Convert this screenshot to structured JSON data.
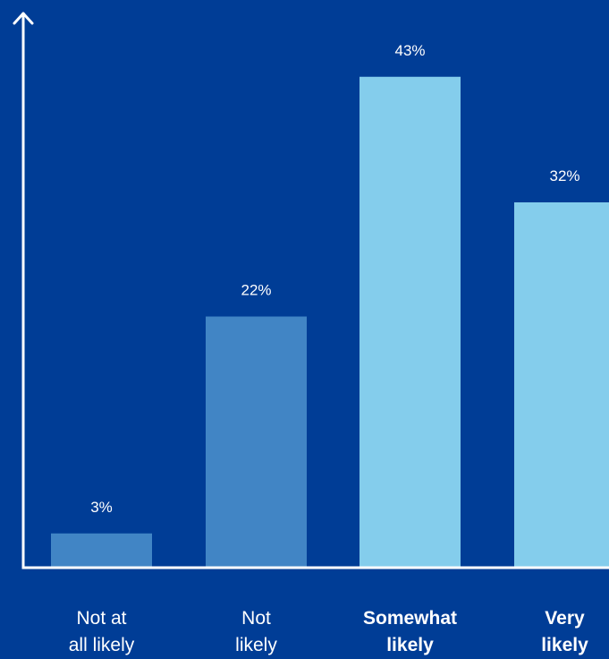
{
  "chart_data": {
    "type": "bar",
    "categories": [
      [
        "Not at",
        "all likely"
      ],
      [
        "Not",
        "likely"
      ],
      [
        "Somewhat",
        "likely"
      ],
      [
        "Very",
        "likely"
      ]
    ],
    "values": [
      3,
      22,
      43,
      32
    ],
    "data_labels": [
      "3%",
      "22%",
      "43%",
      "32%"
    ],
    "category_emphasis": [
      false,
      false,
      true,
      true
    ],
    "bar_colors": [
      "#4185c5",
      "#4185c5",
      "#84cdec",
      "#84cdec"
    ],
    "title": "",
    "xlabel": "",
    "ylabel": "",
    "ylim": [
      0,
      46
    ],
    "grid": false,
    "legend": "none"
  },
  "colors": {
    "background": "#003d96",
    "axis": "#ffffff",
    "text": "#ffffff"
  }
}
